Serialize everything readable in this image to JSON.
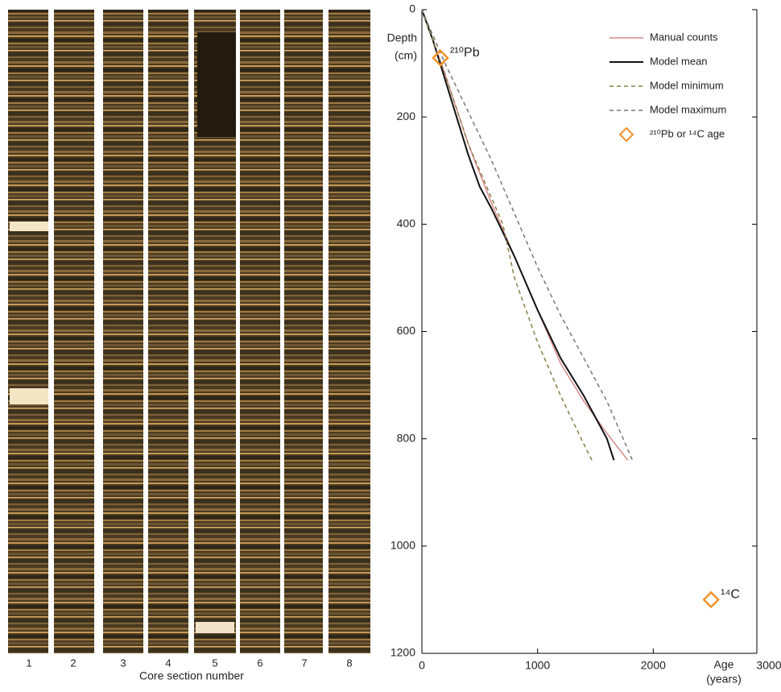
{
  "photo": {
    "labels": [
      "1",
      "2",
      "3",
      "4",
      "5",
      "6",
      "7",
      "8"
    ],
    "xlabel": "Core section number"
  },
  "chart_data": {
    "type": "line",
    "ylabel_lines": [
      "Depth",
      "(cm)"
    ],
    "xlabel_lines": [
      "Age",
      "(years)"
    ],
    "xlim": [
      0,
      3000
    ],
    "xticks": [
      0,
      1000,
      2000,
      3000
    ],
    "ylim": [
      0,
      1200
    ],
    "yticks": [
      0,
      200,
      400,
      600,
      800,
      1000,
      1200
    ],
    "y_inverted": true,
    "legend": "upper right",
    "series": [
      {
        "name": "Manual counts",
        "color": "#d98a8a",
        "dash": false,
        "x": [
          0,
          200,
          400,
          600,
          800,
          1000,
          1200,
          1400,
          1600,
          1780
        ],
        "values": [
          0,
          120,
          250,
          360,
          460,
          560,
          660,
          730,
          790,
          840
        ]
      },
      {
        "name": "Model mean",
        "color": "#111111",
        "dash": false,
        "x": [
          0,
          100,
          200,
          300,
          400,
          500,
          600,
          800,
          1000,
          1200,
          1400,
          1600,
          1660
        ],
        "values": [
          0,
          60,
          130,
          200,
          270,
          330,
          370,
          460,
          560,
          650,
          720,
          800,
          840
        ]
      },
      {
        "name": "Model minimum",
        "color": "#8b7d4a",
        "dash": true,
        "x": [
          0,
          200,
          400,
          600,
          700,
          800,
          1000,
          1200,
          1400,
          1470
        ],
        "values": [
          0,
          120,
          250,
          350,
          400,
          500,
          620,
          720,
          810,
          840
        ]
      },
      {
        "name": "Model maximum",
        "color": "#777777",
        "dash": true,
        "x": [
          0,
          200,
          400,
          600,
          800,
          1000,
          1200,
          1400,
          1600,
          1820
        ],
        "values": [
          0,
          100,
          190,
          280,
          380,
          480,
          570,
          650,
          730,
          840
        ]
      }
    ],
    "points": {
      "name": "²¹⁰Pb or ¹⁴C age",
      "color": "#f0932b",
      "x": [
        160,
        2500
      ],
      "values": [
        90,
        1100
      ],
      "labels": [
        "²¹⁰Pb",
        "¹⁴C"
      ]
    }
  }
}
